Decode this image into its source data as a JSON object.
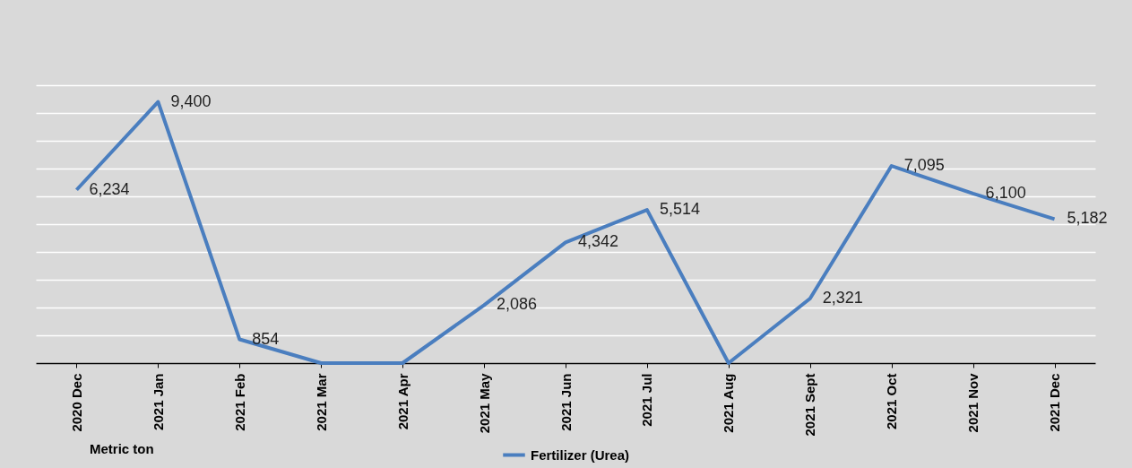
{
  "chart_data": {
    "type": "line",
    "categories": [
      "2020 Dec",
      "2021 Jan",
      "2021 Feb",
      "2021 Mar",
      "2021 Apr",
      "2021 May",
      "2021 Jun",
      "2021 Jul",
      "2021 Aug",
      "2021 Sept",
      "2021 Oct",
      "2021 Nov",
      "2021 Dec"
    ],
    "series": [
      {
        "name": "Fertilizer (Urea)",
        "color": "#4a7ebf",
        "values": [
          6234,
          9400,
          854,
          0,
          0,
          2086,
          4342,
          5514,
          0,
          2321,
          7095,
          6100,
          5182
        ],
        "value_labels": [
          "6,234",
          "9,400",
          "854",
          null,
          null,
          "2,086",
          "4,342",
          "5,514",
          null,
          "2,321",
          "7,095",
          "6,100",
          "5,182"
        ]
      }
    ],
    "ylim": [
      0,
      10000
    ],
    "yticks": [
      {
        "value": 0,
        "label": null
      },
      {
        "value": 1000,
        "label": null
      },
      {
        "value": 2000,
        "label": null
      },
      {
        "value": 3000,
        "label": null
      },
      {
        "value": 4000,
        "label": null
      },
      {
        "value": 5000,
        "label": null
      },
      {
        "value": 6000,
        "label": null
      },
      {
        "value": 7000,
        "label": null
      },
      {
        "value": 8000,
        "label": null
      },
      {
        "value": 9000,
        "label": null
      },
      {
        "value": 10000,
        "label": null
      }
    ],
    "tick_labels": "x",
    "grid": "y",
    "legend": "bottom",
    "annotations": [
      "Metric ton"
    ]
  }
}
